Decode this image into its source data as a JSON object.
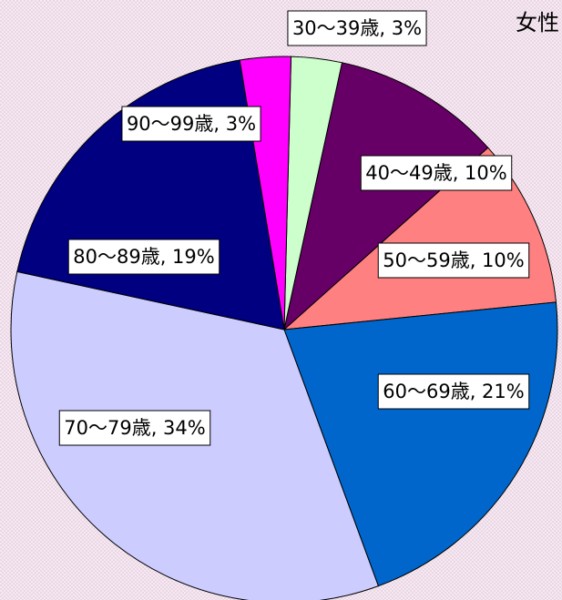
{
  "chart_data": {
    "type": "pie",
    "title": "女性",
    "values": [
      3,
      10,
      10,
      21,
      34,
      19,
      3
    ],
    "value_labels": [
      "30～39歳, 3%",
      "40～49歳, 10%",
      "50～59歳, 10%",
      "60～69歳, 21%",
      "70～79歳, 34%",
      "80～89歳, 19%",
      "90～99歳, 3%"
    ],
    "colors": [
      "#ccffcc",
      "#660066",
      "#ff8080",
      "#0066cc",
      "#ccccff",
      "#000080",
      "#ff00ff"
    ]
  }
}
